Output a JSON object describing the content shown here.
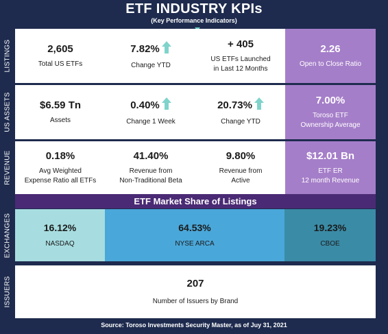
{
  "header": {
    "title": "ETF INDUSTRY KPIs",
    "subtitle": "(Key Performance Indicators)"
  },
  "colors": {
    "background": "#1e2b4e",
    "purple": "#a57ec9",
    "banner": "#4a2a74",
    "arrow": "#7fd3cb",
    "nasdaq": "#a7dde0",
    "nyse_arca": "#4aa7d9",
    "cboe": "#3a8ba6"
  },
  "listings": {
    "label": "LISTINGS",
    "items": [
      {
        "value": "2,605",
        "label": "Total US ETFs"
      },
      {
        "value": "7.82%",
        "label": "Change YTD",
        "arrow": "up-arrow-icon"
      },
      {
        "value": "+ 405",
        "label": "US ETFs Launched\nin Last 12 Months"
      },
      {
        "value": "2.26",
        "label": "Open to Close Ratio"
      }
    ]
  },
  "us_assets": {
    "label": "US ASSETS",
    "items": [
      {
        "value": "$6.59 Tn",
        "label": "Assets"
      },
      {
        "value": "0.40%",
        "label": "Change 1 Week",
        "arrow": "up-arrow-icon"
      },
      {
        "value": "20.73%",
        "label": "Change YTD",
        "arrow": "up-arrow-icon"
      },
      {
        "value": "7.00%",
        "label": "Toroso ETF\nOwnership Average"
      }
    ]
  },
  "revenue": {
    "label": "REVENUE",
    "items": [
      {
        "value": "0.18%",
        "label": "Avg Weighted\nExpense Ratio all ETFs"
      },
      {
        "value": "41.40%",
        "label": "Revenue from\nNon-Traditional Beta"
      },
      {
        "value": "9.80%",
        "label": "Revenue from\nActive"
      },
      {
        "value": "$12.01 Bn",
        "label": "ETF ER\n12 month Revenue"
      }
    ]
  },
  "exchanges": {
    "label": "EXCHANGES",
    "banner": "ETF Market Share of Listings",
    "items": [
      {
        "value": "16.12%",
        "label": "NASDAQ",
        "share": 16.12
      },
      {
        "value": "64.53%",
        "label": "NYSE ARCA",
        "share": 64.53
      },
      {
        "value": "19.23%",
        "label": "CBOE",
        "share": 19.23
      }
    ]
  },
  "issuers": {
    "label": "ISSUERS",
    "value": "207",
    "caption": "Number of Issuers by Brand"
  },
  "footer": {
    "source": "Source: Toroso Investments Security Master, as of Juy 31, 2021"
  }
}
